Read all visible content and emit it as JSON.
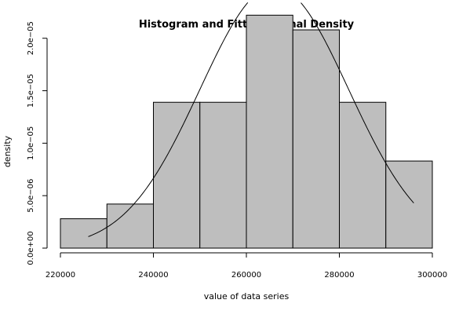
{
  "chart_data": {
    "type": "bar",
    "title": "Histogram and Fitted Normal Density",
    "xlabel": "value of data series",
    "ylabel": "density",
    "bins": [
      {
        "start": 220000,
        "end": 230000,
        "value": 2.8e-06
      },
      {
        "start": 230000,
        "end": 240000,
        "value": 4.2e-06
      },
      {
        "start": 240000,
        "end": 250000,
        "value": 1.39e-05
      },
      {
        "start": 250000,
        "end": 260000,
        "value": 1.39e-05
      },
      {
        "start": 260000,
        "end": 270000,
        "value": 2.22e-05
      },
      {
        "start": 270000,
        "end": 280000,
        "value": 2.08e-05
      },
      {
        "start": 280000,
        "end": 290000,
        "value": 1.39e-05
      },
      {
        "start": 290000,
        "end": 300000,
        "value": 8.3e-06
      }
    ],
    "normal_fit": {
      "mean": 266000,
      "sd": 16000,
      "x_range": [
        226000,
        296000
      ]
    },
    "xlim": [
      220000,
      300000
    ],
    "ylim": [
      0,
      2.2e-05
    ],
    "x_ticks": [
      220000,
      240000,
      260000,
      280000,
      300000
    ],
    "x_tick_labels": [
      "220000",
      "240000",
      "260000",
      "280000",
      "300000"
    ],
    "y_ticks": [
      0,
      5e-06,
      1e-05,
      1.5e-05,
      2e-05
    ],
    "y_tick_labels": [
      "0.0e+00",
      "5.0e−06",
      "1.0e−05",
      "1.5e−05",
      "2.0e−05"
    ],
    "colors": {
      "bar_fill": "#bebebe",
      "bar_stroke": "#000000",
      "curve": "#000000"
    },
    "grid": false
  }
}
